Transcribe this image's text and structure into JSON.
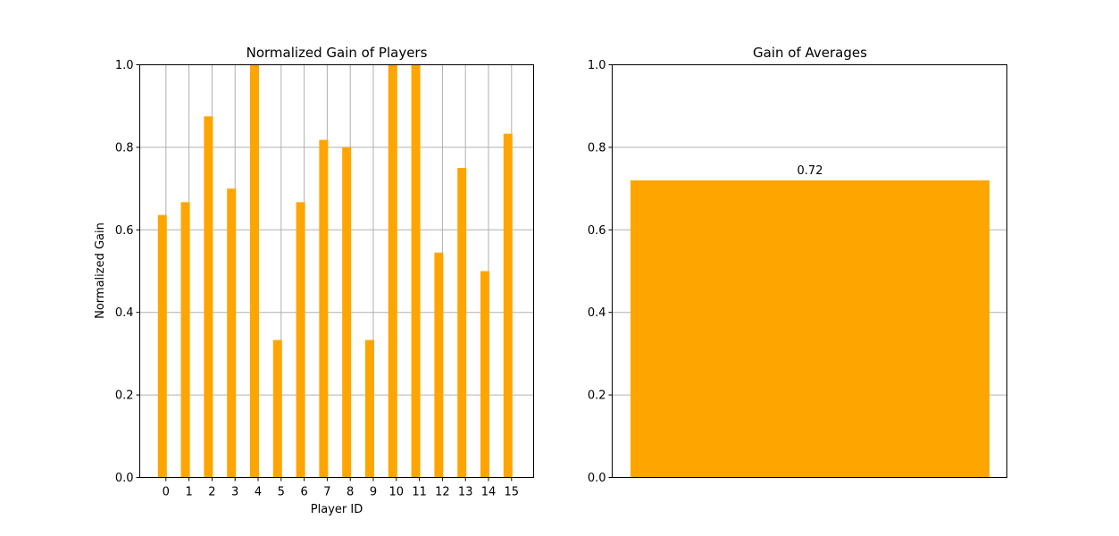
{
  "colors": {
    "bar": "#ffa500",
    "grid": "#b0b0b0",
    "axes": "#000000",
    "background": "#ffffff"
  },
  "chart_data": [
    {
      "type": "bar",
      "title": "Normalized Gain of Players",
      "xlabel": "Player ID",
      "ylabel": "Normalized Gain",
      "categories": [
        "0",
        "1",
        "2",
        "3",
        "4",
        "5",
        "6",
        "7",
        "8",
        "9",
        "10",
        "11",
        "12",
        "13",
        "14",
        "15"
      ],
      "values": [
        0.636,
        0.667,
        0.875,
        0.7,
        1.0,
        0.333,
        0.667,
        0.818,
        0.8,
        0.333,
        1.0,
        1.0,
        0.545,
        0.75,
        0.5,
        0.833
      ],
      "ylim": [
        0,
        1.0
      ],
      "yticks": [
        "0.0",
        "0.2",
        "0.4",
        "0.6",
        "0.8",
        "1.0"
      ],
      "grid": "both"
    },
    {
      "type": "bar",
      "title": "Gain of Averages",
      "xlabel": "",
      "ylabel": "",
      "categories": [
        ""
      ],
      "values": [
        0.72
      ],
      "data_labels": [
        "0.72"
      ],
      "ylim": [
        0,
        1.0
      ],
      "yticks": [
        "0.0",
        "0.2",
        "0.4",
        "0.6",
        "0.8",
        "1.0"
      ],
      "grid": "y"
    }
  ]
}
